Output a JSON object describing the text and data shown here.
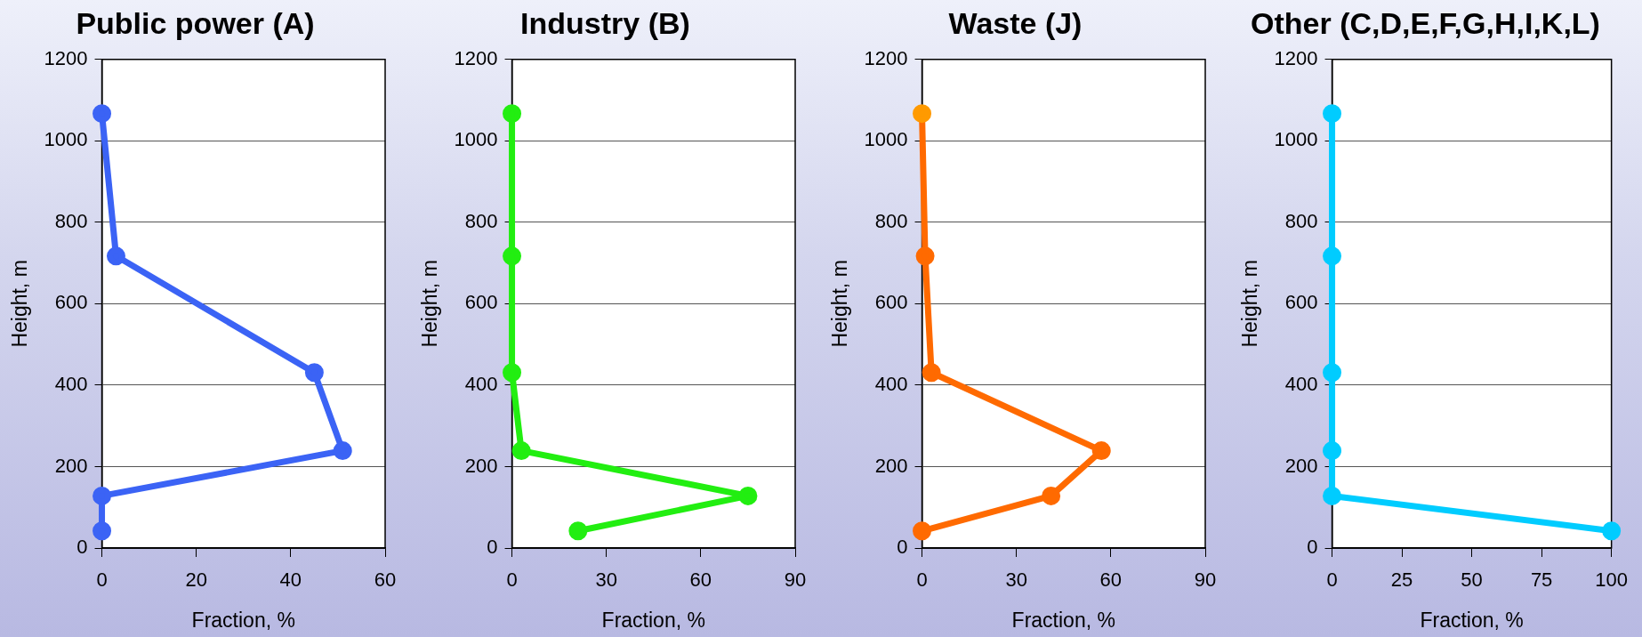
{
  "chart_data": [
    {
      "type": "line",
      "title": "Public power (A)",
      "xlabel": "Fraction, %",
      "ylabel": "Height, m",
      "series": [
        {
          "color": "#3b63f5",
          "x": [
            0,
            3,
            45,
            51,
            0,
            0
          ],
          "values": [
            1067,
            717,
            431,
            239,
            128,
            42
          ]
        }
      ],
      "xlim": [
        0,
        60
      ],
      "xticks": [
        0,
        20,
        40,
        60
      ],
      "ylim": [
        0,
        1200
      ],
      "yticks": [
        0,
        200,
        400,
        600,
        800,
        1000,
        1200
      ],
      "grid": "y",
      "marker": "circle"
    },
    {
      "type": "line",
      "title": "Industry (B)",
      "xlabel": "Fraction, %",
      "ylabel": "Height, m",
      "series": [
        {
          "color": "#22ee11",
          "x": [
            0,
            0,
            0,
            3,
            75,
            21
          ],
          "values": [
            1067,
            717,
            431,
            239,
            128,
            42
          ]
        }
      ],
      "xlim": [
        0,
        90
      ],
      "xticks": [
        0,
        30,
        60,
        90
      ],
      "ylim": [
        0,
        1200
      ],
      "yticks": [
        0,
        200,
        400,
        600,
        800,
        1000,
        1200
      ],
      "grid": "y",
      "marker": "circle"
    },
    {
      "type": "line",
      "title": "Waste (J)",
      "xlabel": "Fraction, %",
      "ylabel": "Height, m",
      "series": [
        {
          "color": "#ff6a00",
          "colors": [
            "#ff9a00",
            "#ff6a00",
            "#ff6a00",
            "#ff6a00",
            "#ff6a00",
            "#ff6a00"
          ],
          "x": [
            0,
            1,
            3,
            57,
            41,
            0
          ],
          "values": [
            1067,
            717,
            431,
            239,
            128,
            42
          ]
        }
      ],
      "xlim": [
        0,
        90
      ],
      "xticks": [
        0,
        30,
        60,
        90
      ],
      "ylim": [
        0,
        1200
      ],
      "yticks": [
        0,
        200,
        400,
        600,
        800,
        1000,
        1200
      ],
      "grid": "y",
      "marker": "circle"
    },
    {
      "type": "line",
      "title": "Other (C,D,E,F,G,H,I,K,L)",
      "xlabel": "Fraction, %",
      "ylabel": "Height, m",
      "series": [
        {
          "color": "#00ccff",
          "x": [
            0,
            0,
            0,
            0,
            0,
            100
          ],
          "values": [
            1067,
            717,
            431,
            239,
            128,
            42
          ]
        }
      ],
      "xlim": [
        0,
        100
      ],
      "xticks": [
        0,
        25,
        50,
        75,
        100
      ],
      "ylim": [
        0,
        1200
      ],
      "yticks": [
        0,
        200,
        400,
        600,
        800,
        1000,
        1200
      ],
      "grid": "y",
      "marker": "circle"
    }
  ]
}
